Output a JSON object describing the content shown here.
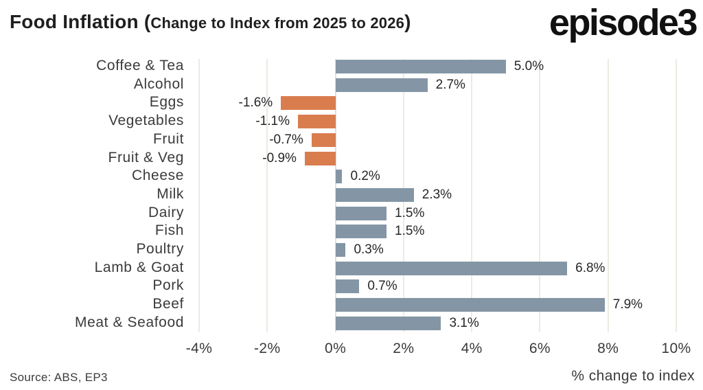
{
  "header": {
    "title_main": "Food Inflation",
    "paren_open": "(",
    "title_sub": "Change to Index from 2025 to 2026",
    "paren_close": ")",
    "logo": "episode3"
  },
  "chart_data": {
    "type": "bar",
    "orientation": "horizontal",
    "title": "Food Inflation (Change to Index from 2025 to 2026)",
    "categories": [
      "Coffee & Tea",
      "Alcohol",
      "Eggs",
      "Vegetables",
      "Fruit",
      "Fruit & Veg",
      "Cheese",
      "Milk",
      "Dairy",
      "Fish",
      "Poultry",
      "Lamb & Goat",
      "Pork",
      "Beef",
      "Meat & Seafood"
    ],
    "values": [
      5.0,
      2.7,
      -1.6,
      -1.1,
      -0.7,
      -0.9,
      0.2,
      2.3,
      1.5,
      1.5,
      0.3,
      6.8,
      0.7,
      7.9,
      3.1
    ],
    "value_labels": [
      "5.0%",
      "2.7%",
      "-1.6%",
      "-1.1%",
      "-0.7%",
      "-0.9%",
      "0.2%",
      "2.3%",
      "1.5%",
      "1.5%",
      "0.3%",
      "6.8%",
      "0.7%",
      "7.9%",
      "3.1%"
    ],
    "xlabel": "% change to index",
    "ylabel": "",
    "xticks": [
      -4,
      -2,
      0,
      2,
      4,
      6,
      8,
      10
    ],
    "xtick_labels": [
      "-4%",
      "-2%",
      "0%",
      "2%",
      "4%",
      "6%",
      "8%",
      "10%"
    ],
    "xlim": [
      -4,
      10.6
    ],
    "grid": true,
    "legend": false,
    "positive_color": "#8496a5",
    "negative_color": "#d97d4e"
  },
  "footer": {
    "source": "Source: ABS, EP3"
  }
}
